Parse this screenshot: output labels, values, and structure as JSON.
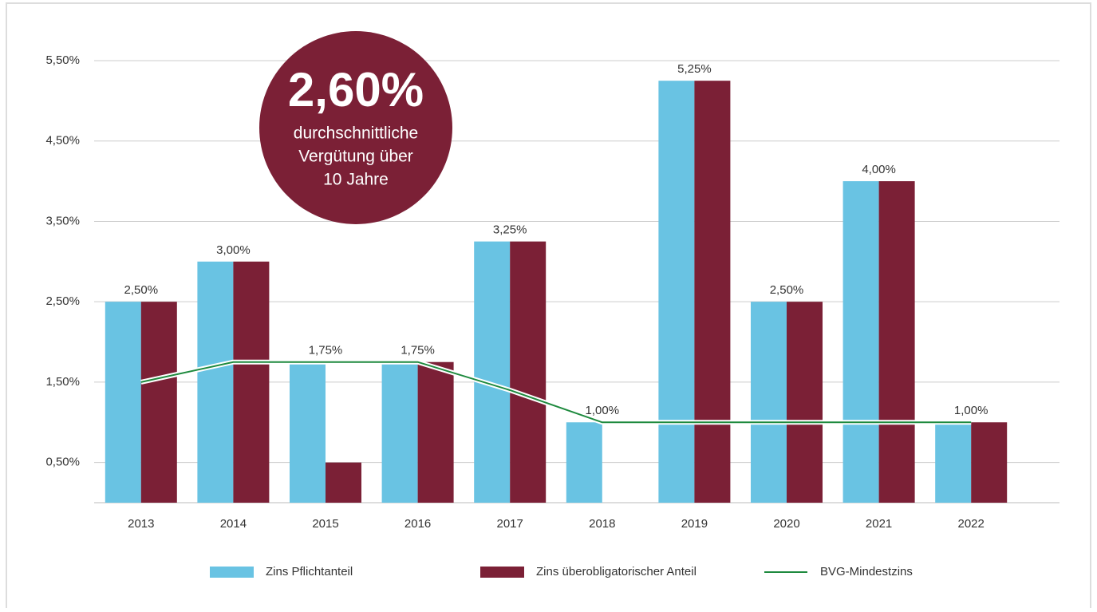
{
  "chart_data": {
    "type": "bar",
    "categories": [
      "2013",
      "2014",
      "2015",
      "2016",
      "2017",
      "2018",
      "2019",
      "2020",
      "2021",
      "2022"
    ],
    "series": [
      {
        "name": "Zins Pflichtanteil",
        "color": "#69c3e3",
        "values": [
          2.5,
          3.0,
          1.75,
          1.75,
          3.25,
          1.0,
          5.25,
          2.5,
          4.0,
          1.0
        ],
        "value_labels": [
          "2,50%",
          "3,00%",
          "1,75%",
          "1,75%",
          "3,25%",
          "1,00%",
          "5,25%",
          "2,50%",
          "4,00%",
          "1,00%"
        ]
      },
      {
        "name": "Zins überobligatorischer Anteil",
        "color": "#7b2036",
        "values": [
          2.5,
          3.0,
          0.5,
          1.75,
          3.25,
          null,
          5.25,
          2.5,
          4.0,
          1.0
        ]
      },
      {
        "name": "BVG-Mindestzins",
        "color": "#1e8a3e",
        "type": "line",
        "values": [
          1.5,
          1.75,
          1.75,
          1.75,
          1.4,
          1.0,
          1.0,
          1.0,
          1.0,
          1.0
        ]
      }
    ],
    "ylim": [
      0,
      5.5
    ],
    "yticks": [
      {
        "value": 0.5,
        "label": "0,50%"
      },
      {
        "value": 1.5,
        "label": "1,50%"
      },
      {
        "value": 2.5,
        "label": "2,50%"
      },
      {
        "value": 3.5,
        "label": "3,50%"
      },
      {
        "value": 4.5,
        "label": "4,50%"
      },
      {
        "value": 5.5,
        "label": "5,50%"
      }
    ],
    "grid": true,
    "legend": "bottom",
    "annotation": {
      "headline": "2,60%",
      "text": [
        "durchschnittliche",
        "Vergütung über",
        "10 Jahre"
      ],
      "color": "#7b2036"
    }
  }
}
